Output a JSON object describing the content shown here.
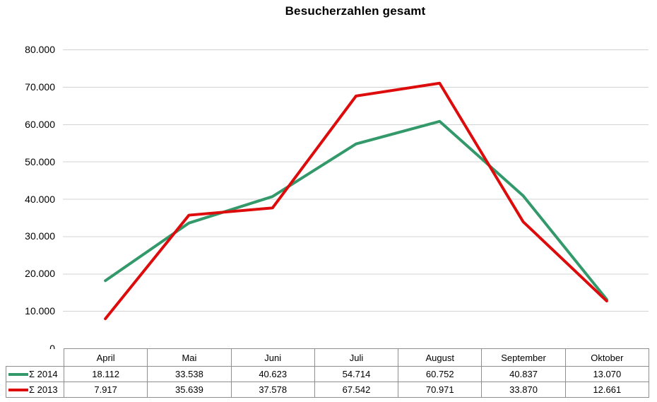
{
  "chart": {
    "title": "Besucherzahlen gesamt"
  },
  "colors": {
    "series_2014": "#33996b",
    "series_2013": "#dd0b0b",
    "gridline": "#d3d3d3",
    "table_border": "#8e8e8e",
    "text": "#000000"
  },
  "y_axis": {
    "tick_labels": [
      "80.000",
      "70.000",
      "60.000",
      "50.000",
      "40.000",
      "30.000",
      "20.000",
      "10.000",
      "0"
    ],
    "min": 0,
    "max": 80000,
    "step": 10000
  },
  "chart_data": {
    "type": "line",
    "title": "Besucherzahlen gesamt",
    "categories": [
      "April",
      "Mai",
      "Juni",
      "Juli",
      "August",
      "September",
      "Oktober"
    ],
    "series": [
      {
        "name": "Σ 2014",
        "color": "#33996b",
        "values": [
          18112,
          33538,
          40623,
          54714,
          60752,
          40837,
          13070
        ],
        "formatted": [
          "18.112",
          "33.538",
          "40.623",
          "54.714",
          "60.752",
          "40.837",
          "13.070"
        ]
      },
      {
        "name": "Σ 2013",
        "color": "#dd0b0b",
        "values": [
          7917,
          35639,
          37578,
          67542,
          70971,
          33870,
          12661
        ],
        "formatted": [
          "7.917",
          "35.639",
          "37.578",
          "67.542",
          "70.971",
          "33.870",
          "12.661"
        ]
      }
    ],
    "xlabel": "",
    "ylabel": "",
    "ylim": [
      0,
      80000
    ],
    "grid": true,
    "legend_position": "data-table-left"
  }
}
